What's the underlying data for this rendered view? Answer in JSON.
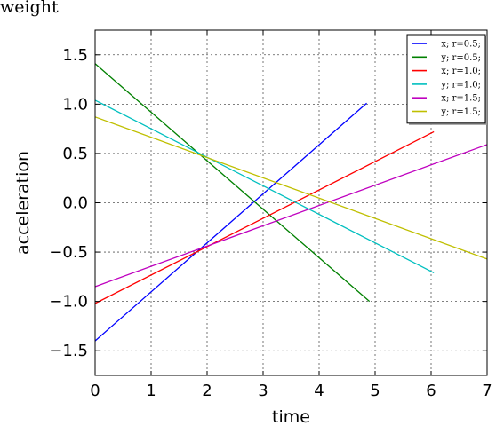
{
  "corner_label": "weight",
  "chart_data": {
    "type": "line",
    "title": "",
    "xlabel": "time",
    "ylabel": "acceleration",
    "xlim": [
      0,
      7
    ],
    "ylim": [
      -1.75,
      1.75
    ],
    "xticks": [
      0,
      1,
      2,
      3,
      4,
      5,
      6,
      7
    ],
    "yticks": [
      -1.5,
      -1.0,
      -0.5,
      0.0,
      0.5,
      1.0,
      1.5
    ],
    "ytick_labels": [
      "−1.5",
      "−1.0",
      "−0.5",
      "0.0",
      "0.5",
      "1.0",
      "1.5"
    ],
    "grid": true,
    "legend_position": "top-right",
    "series": [
      {
        "name": "x; r=0.5;",
        "color": "#0000ff",
        "x": [
          0,
          4.85
        ],
        "y": [
          -1.4,
          1.01
        ]
      },
      {
        "name": "y; r=0.5;",
        "color": "#008000",
        "x": [
          0,
          4.9
        ],
        "y": [
          1.41,
          -1.0
        ]
      },
      {
        "name": "x; r=1.0;",
        "color": "#ff0000",
        "x": [
          0,
          6.05
        ],
        "y": [
          -1.02,
          0.72
        ]
      },
      {
        "name": "y; r=1.0;",
        "color": "#00bfbf",
        "x": [
          0,
          6.05
        ],
        "y": [
          1.04,
          -0.71
        ]
      },
      {
        "name": "x; r=1.5;",
        "color": "#bf00bf",
        "x": [
          0,
          7.0
        ],
        "y": [
          -0.85,
          0.59
        ]
      },
      {
        "name": "y; r=1.5;",
        "color": "#bfbf00",
        "x": [
          0,
          7.0
        ],
        "y": [
          0.87,
          -0.57
        ]
      }
    ]
  }
}
